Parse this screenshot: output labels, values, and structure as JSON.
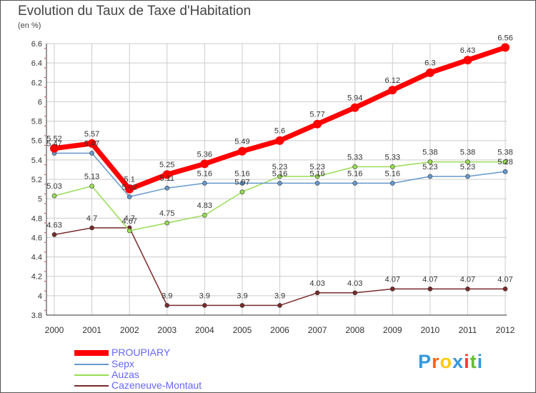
{
  "chart_data": {
    "type": "line",
    "title": "Evolution du Taux de Taxe d'Habitation",
    "subtitle": "(en %)",
    "categories": [
      "2000",
      "2001",
      "2002",
      "2003",
      "2004",
      "2005",
      "2006",
      "2007",
      "2008",
      "2009",
      "2010",
      "2011",
      "2012"
    ],
    "ylim": [
      3.8,
      6.6
    ],
    "yticks": [
      "3.8",
      "4",
      "4.2",
      "4.4",
      "4.6",
      "4.8",
      "5",
      "5.2",
      "5.4",
      "5.6",
      "5.8",
      "6",
      "6.2",
      "6.4",
      "6.6"
    ],
    "grid": true,
    "legend_position": "bottom-left",
    "series": [
      {
        "name": "PROUPIARY",
        "color": "#ff0000",
        "values": [
          5.52,
          5.57,
          5.1,
          5.25,
          5.36,
          5.49,
          5.6,
          5.77,
          5.94,
          6.12,
          6.3,
          6.43,
          6.56
        ],
        "labels": [
          "5.52",
          "5.57",
          "5.1",
          "5.25",
          "5.36",
          "5.49",
          "5.6",
          "5.77",
          "5.94",
          "6.12",
          "6.3",
          "6.43",
          "6.56"
        ]
      },
      {
        "name": "Sepx",
        "color": "#6699cc",
        "values": [
          5.47,
          5.47,
          5.02,
          5.11,
          5.16,
          5.16,
          5.16,
          5.16,
          5.16,
          5.16,
          5.23,
          5.23,
          5.28
        ],
        "labels": [
          "5.47",
          "5.47",
          "5.02",
          "5.11",
          "5.16",
          "5.16",
          "5.16",
          "5.16",
          "5.16",
          "5.16",
          "5.23",
          "5.23",
          "5.28"
        ]
      },
      {
        "name": "Auzas",
        "color": "#99dd55",
        "values": [
          5.03,
          5.13,
          4.67,
          4.75,
          4.83,
          5.07,
          5.23,
          5.23,
          5.33,
          5.33,
          5.38,
          5.38,
          5.38
        ],
        "labels": [
          "5.03",
          "5.13",
          "4.67",
          "4.75",
          "4.83",
          "5.07",
          "5.23",
          "5.23",
          "5.33",
          "5.33",
          "5.38",
          "5.38",
          "5.38"
        ]
      },
      {
        "name": "Cazeneuve-Montaut",
        "color": "#7a2a2a",
        "values": [
          4.63,
          4.7,
          4.7,
          3.9,
          3.9,
          3.9,
          3.9,
          4.03,
          4.03,
          4.07,
          4.07,
          4.07,
          4.07
        ],
        "labels": [
          "4.63",
          "4.7",
          "4.7",
          "3.9",
          "3.9",
          "3.9",
          "3.9",
          "4.03",
          "4.03",
          "4.07",
          "4.07",
          "4.07",
          "4.07"
        ]
      }
    ]
  },
  "legend": {
    "items": [
      {
        "label": "PROUPIARY",
        "color": "#ff0000",
        "text_color": "#6666ff"
      },
      {
        "label": "Sepx",
        "color": "#6699cc",
        "text_color": "#6666ff"
      },
      {
        "label": "Auzas",
        "color": "#99dd55",
        "text_color": "#6666ff"
      },
      {
        "label": "Cazeneuve-Montaut",
        "color": "#7a2a2a",
        "text_color": "#6666ff"
      }
    ]
  },
  "logo": {
    "letters": [
      "P",
      "r",
      "o",
      "x",
      "i",
      "t",
      "i"
    ],
    "colors": [
      "#3399dd",
      "#ff6600",
      "#ffcc00",
      "#3399dd",
      "#ff3333",
      "#66bb33",
      "#3399dd"
    ]
  }
}
